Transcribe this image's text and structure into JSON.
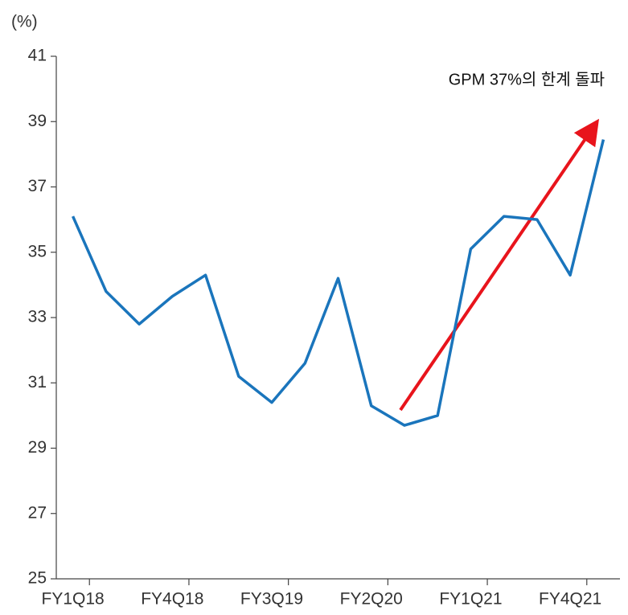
{
  "chart_data": {
    "type": "line",
    "y_unit_label": "(%)",
    "annotation": "GPM 37%의 한계 돌파",
    "categories": [
      "FY1Q18",
      null,
      null,
      "FY4Q18",
      null,
      null,
      "FY3Q19",
      null,
      null,
      "FY2Q20",
      null,
      null,
      "FY1Q21",
      null,
      null,
      "FY4Q21",
      null
    ],
    "values": [
      36.1,
      33.8,
      32.8,
      33.65,
      34.3,
      31.2,
      30.4,
      31.6,
      34.2,
      30.3,
      29.7,
      30.0,
      35.1,
      36.1,
      36.0,
      34.3,
      38.45
    ],
    "color": "#1a75bc",
    "ylim": [
      25,
      41
    ],
    "yticks": [
      25,
      27,
      29,
      31,
      33,
      35,
      37,
      39,
      41
    ],
    "grid": false
  }
}
